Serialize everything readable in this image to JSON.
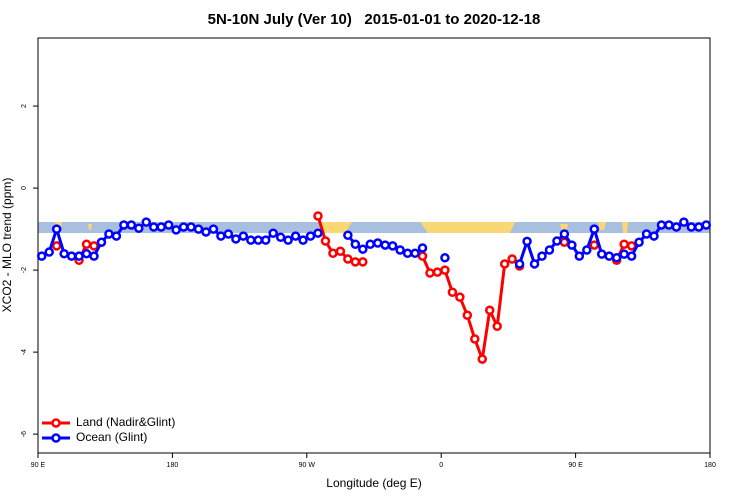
{
  "chart_data": {
    "type": "line",
    "title": "5N-10N July (Ver 10)   2015-01-01 to 2020-12-18",
    "x_label": "Longitude (deg E)",
    "y_label": "XCO2 - MLO trend (ppm)",
    "x": [
      92.5,
      97.5,
      102.5,
      107.5,
      112.5,
      117.5,
      122.5,
      127.5,
      132.5,
      137.5,
      142.5,
      147.5,
      152.5,
      157.5,
      162.5,
      167.5,
      172.5,
      177.5,
      182.5,
      187.5,
      192.5,
      197.5,
      202.5,
      207.5,
      212.5,
      217.5,
      222.5,
      227.5,
      232.5,
      237.5,
      242.5,
      247.5,
      252.5,
      257.5,
      262.5,
      267.5,
      272.5,
      277.5,
      282.5,
      287.5,
      292.5,
      297.5,
      302.5,
      307.5,
      312.5,
      317.5,
      322.5,
      327.5,
      332.5,
      337.5,
      342.5,
      347.5,
      352.5,
      357.5,
      362.5,
      367.5,
      372.5,
      377.5,
      382.5,
      387.5,
      392.5,
      397.5,
      402.5,
      407.5,
      412.5,
      417.5,
      422.5,
      427.5,
      432.5,
      437.5,
      442.5,
      447.5,
      452.5,
      457.5,
      462.5,
      467.5,
      472.5,
      477.5,
      482.5,
      487.5,
      492.5,
      497.5,
      502.5,
      507.5,
      512.5,
      517.5,
      522.5,
      527.5,
      532.5,
      537.5
    ],
    "series": [
      {
        "name": "Land (Nadir&Glint)",
        "color": "#ff0000",
        "values": [
          null,
          null,
          -1.41,
          null,
          null,
          -1.76,
          -1.37,
          -1.41,
          null,
          null,
          null,
          null,
          null,
          null,
          null,
          null,
          null,
          null,
          null,
          null,
          null,
          null,
          null,
          null,
          null,
          null,
          null,
          null,
          null,
          null,
          null,
          null,
          null,
          null,
          null,
          null,
          null,
          -0.68,
          -1.29,
          -1.59,
          -1.54,
          -1.73,
          -1.8,
          -1.8,
          null,
          null,
          null,
          null,
          null,
          null,
          null,
          -1.66,
          -2.07,
          -2.05,
          -2.0,
          -2.54,
          -2.66,
          -3.1,
          -3.68,
          -4.17,
          -2.98,
          -3.37,
          -1.85,
          -1.73,
          -1.9,
          null,
          null,
          null,
          null,
          null,
          -1.32,
          null,
          null,
          null,
          -1.39,
          null,
          null,
          -1.76,
          -1.37,
          -1.41,
          null,
          null,
          null,
          null,
          null,
          null,
          null,
          null,
          null,
          null
        ]
      },
      {
        "name": "Ocean (Glint)",
        "color": "#0000ff",
        "values": [
          -1.66,
          -1.56,
          -1.0,
          -1.6,
          -1.66,
          -1.66,
          -1.6,
          -1.66,
          -1.32,
          -1.12,
          -1.17,
          -0.9,
          -0.9,
          -0.98,
          -0.83,
          -0.95,
          -0.95,
          -0.9,
          -1.02,
          -0.95,
          -0.95,
          -1.0,
          -1.07,
          -1.0,
          -1.17,
          -1.12,
          -1.24,
          -1.17,
          -1.27,
          -1.27,
          -1.27,
          -1.1,
          -1.2,
          -1.27,
          -1.17,
          -1.27,
          -1.17,
          -1.1,
          null,
          null,
          null,
          -1.15,
          -1.37,
          -1.49,
          -1.37,
          -1.34,
          -1.39,
          -1.41,
          -1.51,
          -1.59,
          -1.59,
          -1.46,
          null,
          null,
          -1.7,
          null,
          null,
          null,
          null,
          null,
          null,
          null,
          null,
          null,
          -1.85,
          -1.3,
          -1.85,
          -1.66,
          -1.51,
          -1.29,
          -1.12,
          -1.39,
          -1.66,
          -1.51,
          -1.0,
          -1.61,
          -1.66,
          -1.7,
          -1.61,
          -1.66,
          -1.32,
          -1.12,
          -1.17,
          -0.9,
          -0.9,
          -0.95,
          -0.83,
          -0.95,
          -0.95,
          -0.9
        ]
      }
    ],
    "xlim": [
      90,
      540
    ],
    "xticks": [
      {
        "value": 90,
        "label": "90 E"
      },
      180,
      {
        "value": 270,
        "label": "90 W"
      },
      {
        "value": 360,
        "label": "0"
      },
      {
        "value": 450,
        "label": "90 E"
      },
      {
        "value": 540,
        "label": "180"
      }
    ],
    "ylim": [
      -6.46,
      3.66
    ],
    "yticks": [
      -6,
      -4,
      -2,
      0,
      2
    ],
    "legend": "bottom-left",
    "grid": false
  }
}
